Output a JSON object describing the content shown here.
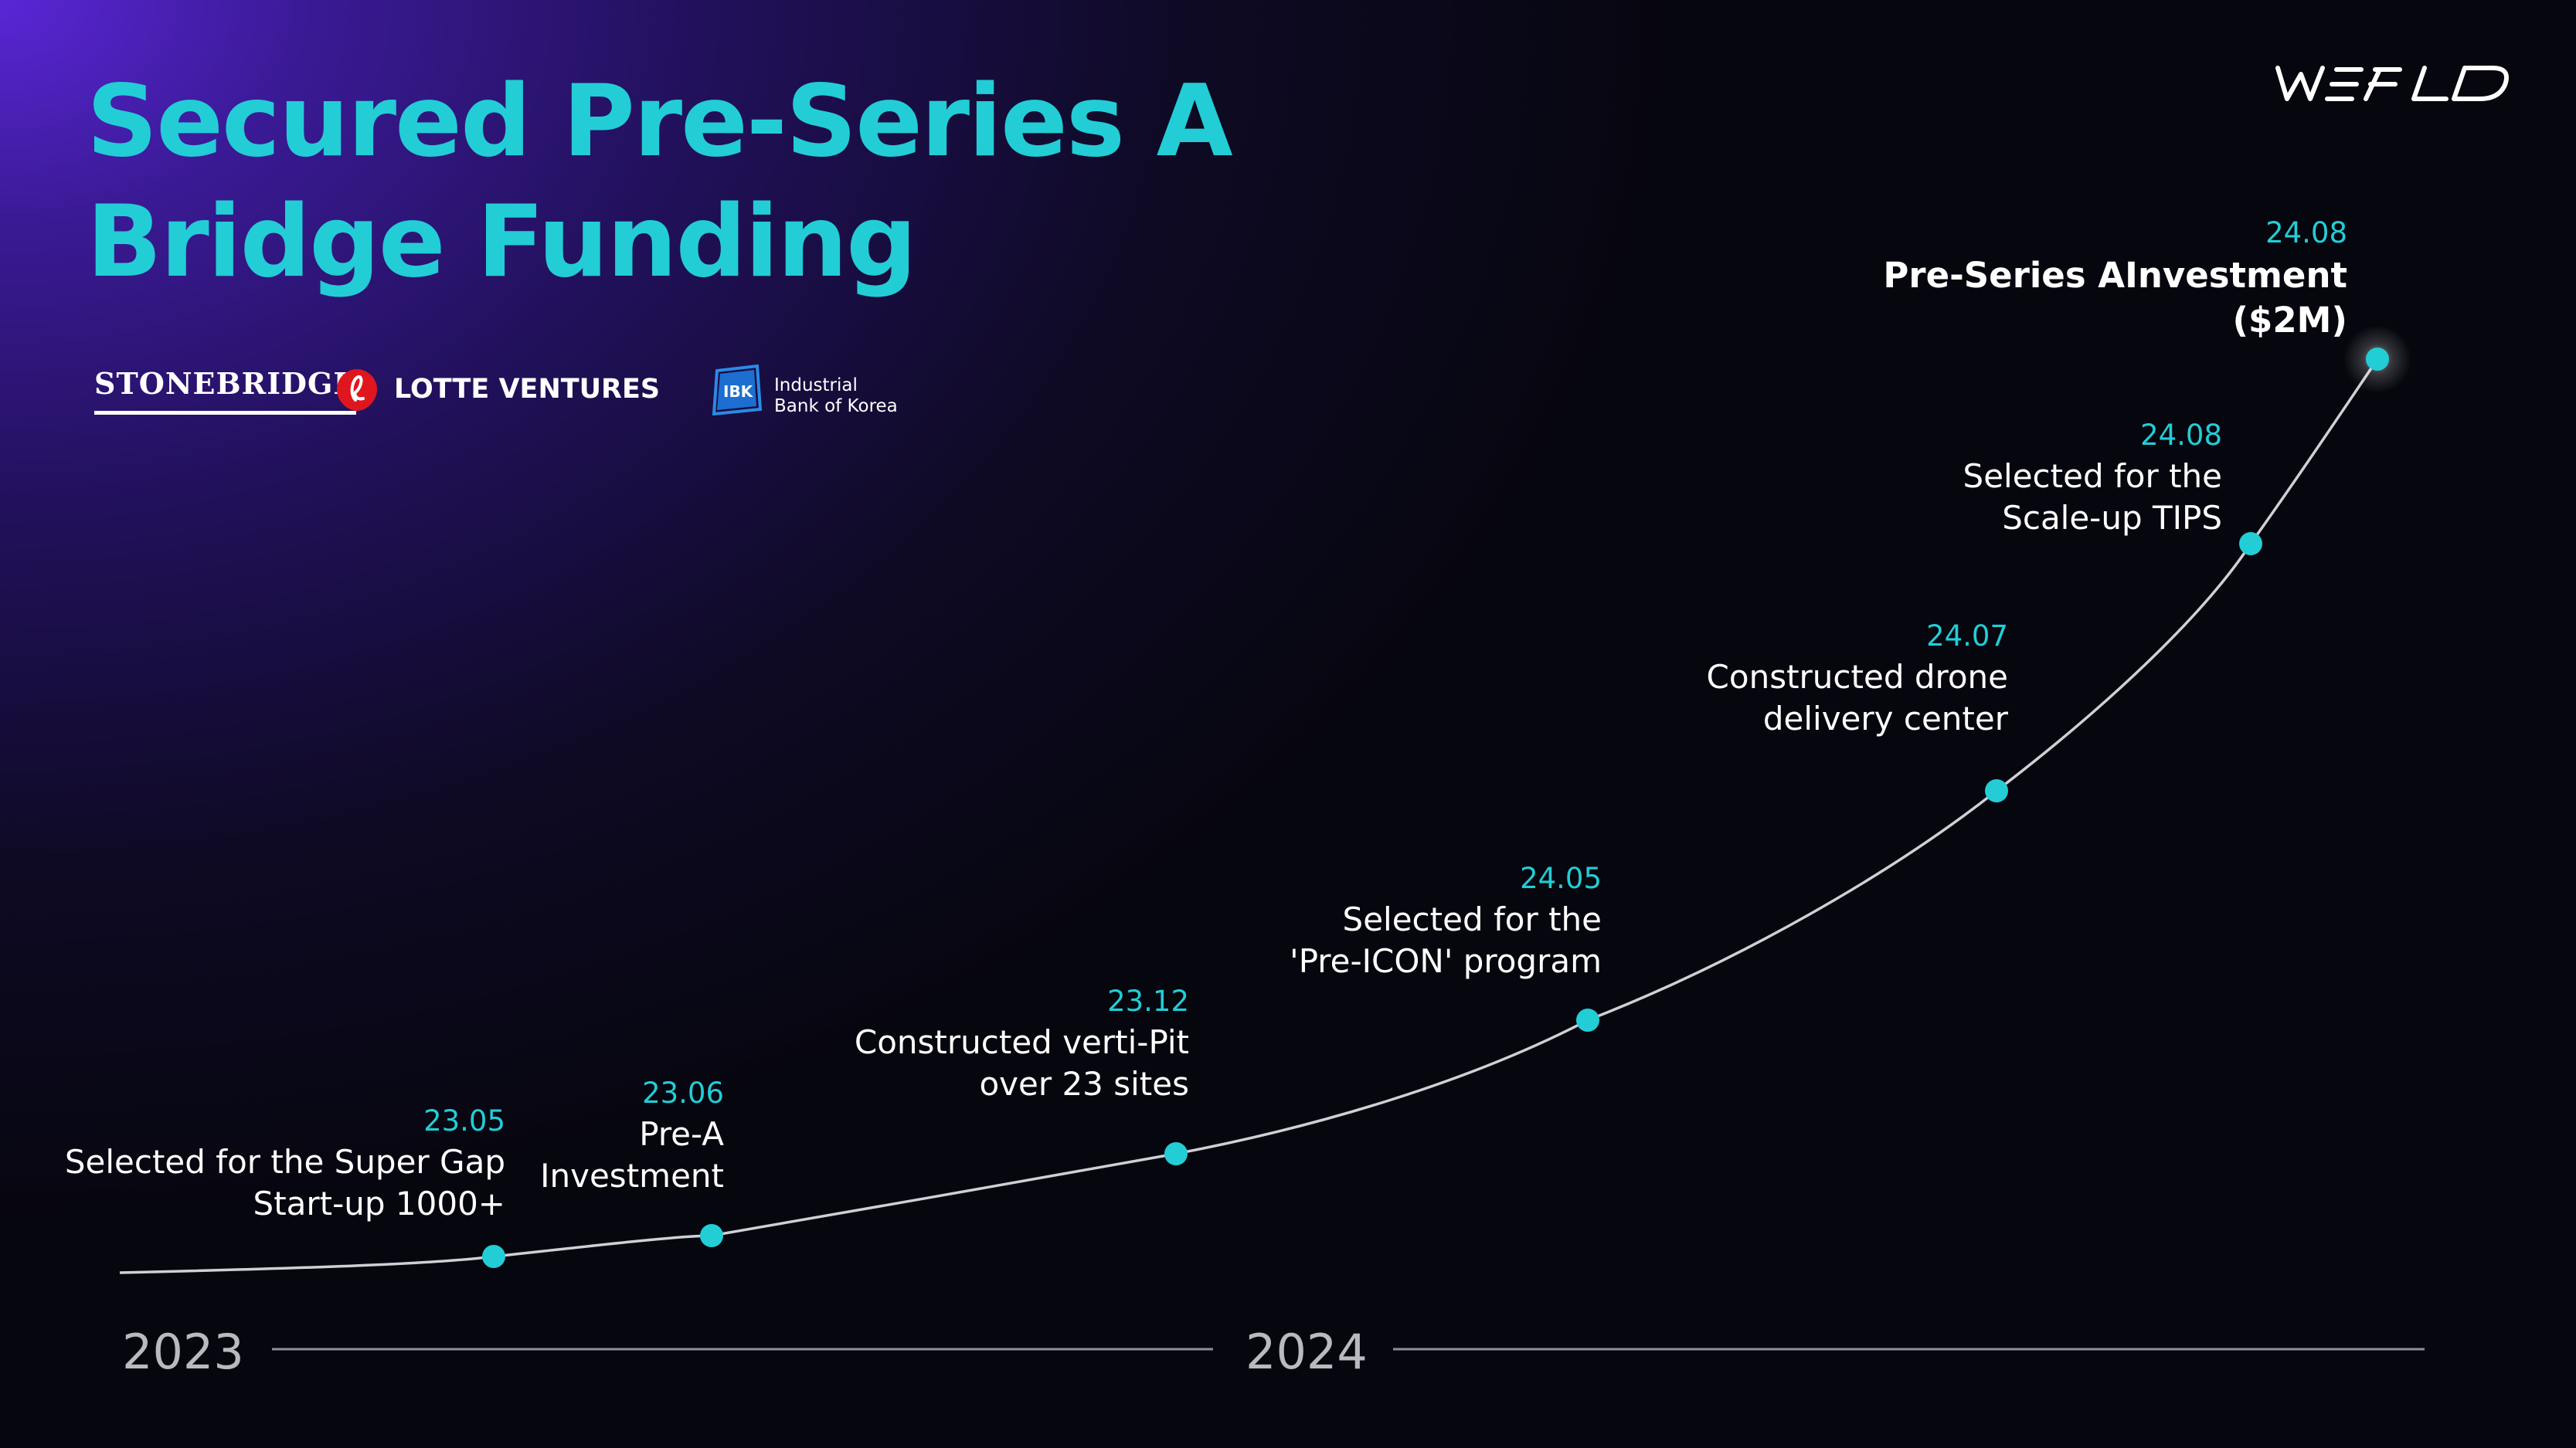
{
  "title": {
    "line1": "Secured Pre-Series A",
    "line2": "Bridge Funding"
  },
  "brand": {
    "name": "WEFLO",
    "color": "#ffffff"
  },
  "investors": {
    "stonebridge": "STONEBRIDGE",
    "lotte": "LOTTE VENTURES",
    "ibk_line1": "Industrial",
    "ibk_line2": "Bank of Korea"
  },
  "colors": {
    "accent": "#22cdd6",
    "text": "#ffffff",
    "axis": "#b9bac0",
    "lotte_red": "#e0161e",
    "ibk_blue": "#1c6fd0"
  },
  "milestones": [
    {
      "date": "23.05",
      "lines": [
        "Selected for the Super Gap",
        "Start-up 1000+"
      ]
    },
    {
      "date": "23.06",
      "lines": [
        "Pre-A",
        "Investment"
      ]
    },
    {
      "date": "23.12",
      "lines": [
        "Constructed verti-Pit",
        "over 23 sites"
      ]
    },
    {
      "date": "24.05",
      "lines": [
        "Selected for the",
        "'Pre-ICON' program"
      ]
    },
    {
      "date": "24.07",
      "lines": [
        "Constructed drone",
        "delivery center"
      ]
    },
    {
      "date": "24.08",
      "lines": [
        "Selected for the",
        "Scale-up TIPS"
      ]
    },
    {
      "date": "24.08",
      "lines": [
        "Pre-Series AInvestment",
        "($2M)"
      ],
      "highlight": true
    }
  ],
  "timeline": {
    "years": [
      "2023",
      "2024"
    ]
  }
}
